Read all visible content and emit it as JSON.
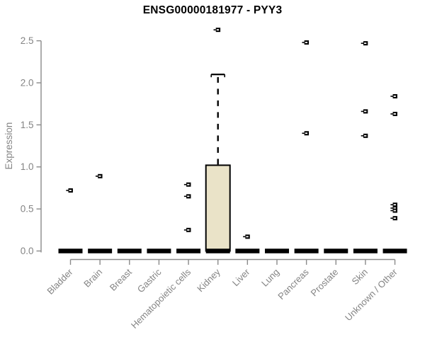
{
  "title": "ENSG00000181977 - PYY3",
  "colors": {
    "background": "#ffffff",
    "title_text": "#000000",
    "axis_line": "#8a8a8a",
    "axis_text": "#848484",
    "box_fill": "#eae3c8",
    "box_stroke": "#000000",
    "median_bar": "#000000",
    "marker": "#000000",
    "marker_slit": "#ffffff"
  },
  "chart_data": {
    "type": "boxplot",
    "title": "ENSG00000181977 - PYY3",
    "xlabel": "",
    "ylabel": "Expression",
    "ylim": [
      0.0,
      2.5
    ],
    "ytick_labels": [
      "0.0",
      "0.5",
      "1.0",
      "1.5",
      "2.0",
      "2.5"
    ],
    "grid": "off",
    "legend": "none",
    "categories": [
      "Bladder",
      "Brain",
      "Breast",
      "Gastric",
      "Hematopoietic cells",
      "Kidney",
      "Liver",
      "Lung",
      "Pancreas",
      "Prostate",
      "Skin",
      "Unknown / Other"
    ],
    "series": [
      {
        "category": "Bladder",
        "q1": 0,
        "median": 0,
        "q3": 0,
        "whisker_low": 0,
        "whisker_high": 0,
        "outliers": [
          0.72
        ]
      },
      {
        "category": "Brain",
        "q1": 0,
        "median": 0,
        "q3": 0,
        "whisker_low": 0,
        "whisker_high": 0,
        "outliers": [
          0.89
        ]
      },
      {
        "category": "Breast",
        "q1": 0,
        "median": 0,
        "q3": 0,
        "whisker_low": 0,
        "whisker_high": 0,
        "outliers": []
      },
      {
        "category": "Gastric",
        "q1": 0,
        "median": 0,
        "q3": 0,
        "whisker_low": 0,
        "whisker_high": 0,
        "outliers": []
      },
      {
        "category": "Hematopoietic cells",
        "q1": 0,
        "median": 0,
        "q3": 0,
        "whisker_low": 0,
        "whisker_high": 0,
        "outliers": [
          0.79,
          0.65,
          0.25
        ]
      },
      {
        "category": "Kidney",
        "q1": 0,
        "median": 0,
        "q3": 1.02,
        "whisker_low": 0,
        "whisker_high": 2.1,
        "outliers": [
          2.63
        ]
      },
      {
        "category": "Liver",
        "q1": 0,
        "median": 0,
        "q3": 0,
        "whisker_low": 0,
        "whisker_high": 0,
        "outliers": [
          0.17
        ]
      },
      {
        "category": "Lung",
        "q1": 0,
        "median": 0,
        "q3": 0,
        "whisker_low": 0,
        "whisker_high": 0,
        "outliers": []
      },
      {
        "category": "Pancreas",
        "q1": 0,
        "median": 0,
        "q3": 0,
        "whisker_low": 0,
        "whisker_high": 0,
        "outliers": [
          2.48,
          1.4
        ]
      },
      {
        "category": "Prostate",
        "q1": 0,
        "median": 0,
        "q3": 0,
        "whisker_low": 0,
        "whisker_high": 0,
        "outliers": []
      },
      {
        "category": "Skin",
        "q1": 0,
        "median": 0,
        "q3": 0,
        "whisker_low": 0,
        "whisker_high": 0,
        "outliers": [
          2.47,
          1.66,
          1.37
        ]
      },
      {
        "category": "Unknown / Other",
        "q1": 0,
        "median": 0,
        "q3": 0,
        "whisker_low": 0,
        "whisker_high": 0,
        "outliers": [
          1.84,
          1.63,
          0.55,
          0.51,
          0.48,
          0.39
        ]
      }
    ]
  }
}
